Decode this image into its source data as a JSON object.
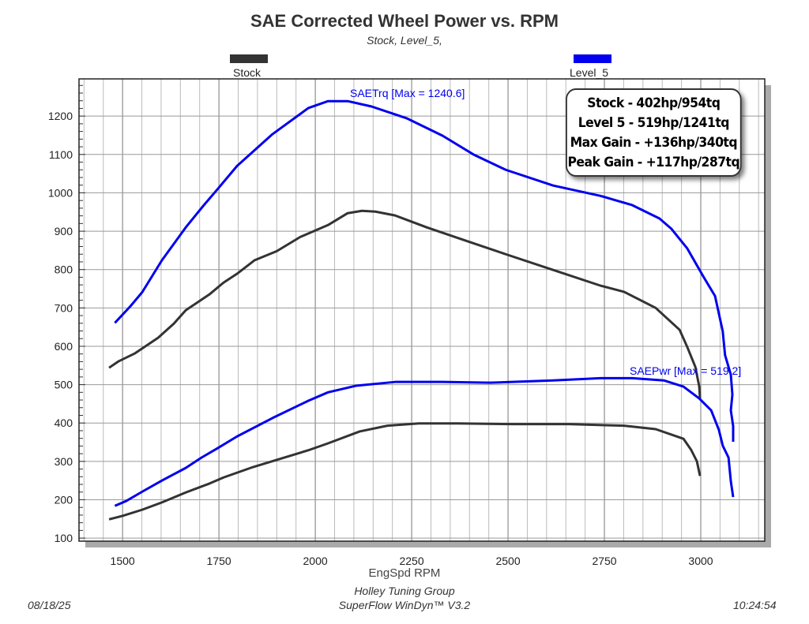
{
  "chart_data": {
    "type": "line",
    "title": "SAE Corrected Wheel Power vs. RPM",
    "subtitle": "Stock, Level_5,",
    "xlabel": "EngSpd RPM",
    "ylabel": "",
    "xlim": [
      1387,
      3166
    ],
    "ylim": [
      92,
      1297
    ],
    "xticks": [
      1500,
      1750,
      2000,
      2250,
      2500,
      2750,
      3000
    ],
    "yticks": [
      100,
      200,
      300,
      400,
      500,
      600,
      700,
      800,
      900,
      1000,
      1100,
      1200
    ],
    "grid": true,
    "legend_position": "top",
    "legend": [
      {
        "name": "Stock",
        "color": "#333333"
      },
      {
        "name": "Level_5",
        "color": "#0000ee"
      }
    ],
    "series": [
      {
        "name": "Level_5",
        "quantity": "SAETrq",
        "color": "#0000ee",
        "points": [
          [
            1480,
            661
          ],
          [
            1520,
            704
          ],
          [
            1551,
            741
          ],
          [
            1602,
            824
          ],
          [
            1664,
            910
          ],
          [
            1711,
            968
          ],
          [
            1746,
            1009
          ],
          [
            1797,
            1070
          ],
          [
            1889,
            1153
          ],
          [
            1982,
            1221
          ],
          [
            2033,
            1239
          ],
          [
            2084,
            1239
          ],
          [
            2146,
            1225
          ],
          [
            2238,
            1194
          ],
          [
            2330,
            1149
          ],
          [
            2412,
            1099
          ],
          [
            2494,
            1060
          ],
          [
            2617,
            1019
          ],
          [
            2740,
            992
          ],
          [
            2822,
            968
          ],
          [
            2893,
            933
          ],
          [
            2924,
            906
          ],
          [
            2965,
            855
          ],
          [
            3006,
            783
          ],
          [
            3037,
            731
          ],
          [
            3057,
            639
          ],
          [
            3063,
            577
          ],
          [
            3078,
            526
          ],
          [
            3082,
            474
          ],
          [
            3078,
            433
          ],
          [
            3084,
            392
          ],
          [
            3084,
            351
          ]
        ]
      },
      {
        "name": "Stock",
        "quantity": "SAETrq",
        "color": "#333333",
        "points": [
          [
            1465,
            544
          ],
          [
            1490,
            561
          ],
          [
            1531,
            581
          ],
          [
            1592,
            622
          ],
          [
            1633,
            659
          ],
          [
            1664,
            694
          ],
          [
            1725,
            735
          ],
          [
            1762,
            766
          ],
          [
            1797,
            789
          ],
          [
            1842,
            824
          ],
          [
            1900,
            848
          ],
          [
            1961,
            885
          ],
          [
            2033,
            916
          ],
          [
            2084,
            947
          ],
          [
            2121,
            953
          ],
          [
            2156,
            951
          ],
          [
            2207,
            941
          ],
          [
            2289,
            910
          ],
          [
            2391,
            875
          ],
          [
            2494,
            840
          ],
          [
            2617,
            799
          ],
          [
            2740,
            758
          ],
          [
            2801,
            742
          ],
          [
            2883,
            700
          ],
          [
            2945,
            643
          ],
          [
            2965,
            598
          ],
          [
            2986,
            546
          ],
          [
            2996,
            495
          ],
          [
            2998,
            464
          ]
        ]
      },
      {
        "name": "Level_5",
        "quantity": "SAEPwr",
        "color": "#0000ee",
        "points": [
          [
            1480,
            184
          ],
          [
            1510,
            197
          ],
          [
            1551,
            221
          ],
          [
            1602,
            250
          ],
          [
            1664,
            283
          ],
          [
            1705,
            310
          ],
          [
            1746,
            334
          ],
          [
            1797,
            365
          ],
          [
            1889,
            413
          ],
          [
            1982,
            458
          ],
          [
            2033,
            480
          ],
          [
            2105,
            497
          ],
          [
            2207,
            507
          ],
          [
            2330,
            507
          ],
          [
            2453,
            505
          ],
          [
            2617,
            511
          ],
          [
            2740,
            517
          ],
          [
            2822,
            517
          ],
          [
            2904,
            511
          ],
          [
            2955,
            495
          ],
          [
            2996,
            464
          ],
          [
            3027,
            433
          ],
          [
            3047,
            382
          ],
          [
            3057,
            341
          ],
          [
            3072,
            310
          ],
          [
            3078,
            248
          ],
          [
            3084,
            207
          ]
        ]
      },
      {
        "name": "Stock",
        "quantity": "SAEPwr",
        "color": "#333333",
        "points": [
          [
            1465,
            149
          ],
          [
            1500,
            158
          ],
          [
            1551,
            174
          ],
          [
            1602,
            193
          ],
          [
            1664,
            219
          ],
          [
            1725,
            242
          ],
          [
            1762,
            258
          ],
          [
            1838,
            285
          ],
          [
            1900,
            304
          ],
          [
            1982,
            329
          ],
          [
            2033,
            347
          ],
          [
            2115,
            378
          ],
          [
            2187,
            393
          ],
          [
            2268,
            399
          ],
          [
            2371,
            399
          ],
          [
            2514,
            397
          ],
          [
            2658,
            397
          ],
          [
            2801,
            393
          ],
          [
            2883,
            384
          ],
          [
            2955,
            359
          ],
          [
            2975,
            330
          ],
          [
            2990,
            300
          ],
          [
            2998,
            262
          ]
        ]
      }
    ],
    "annotations": {
      "torque_max": "SAETrq [Max = 1240.6]",
      "power_max": "SAEPwr [Max = 519.2]"
    },
    "summary_box": [
      "Stock - 402hp/954tq",
      "Level 5 - 519hp/1241tq",
      "Max Gain - +136hp/340tq",
      "Peak Gain - +117hp/287tq"
    ]
  },
  "footer": {
    "company": "Holley Tuning Group",
    "software": "SuperFlow WinDyn™ V3.2",
    "date": "08/18/25",
    "time": "10:24:54"
  }
}
